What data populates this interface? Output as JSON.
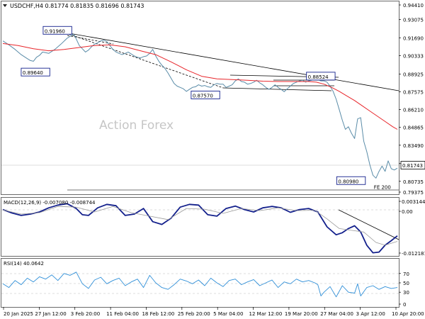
{
  "header": {
    "symbol_line": "USDCHF,H4  0.81774 0.81835 0.81696 0.81743"
  },
  "watermark": "Action Forex",
  "colors": {
    "price": "#5a8ca8",
    "ma": "#e8262b",
    "macd": "#13208c",
    "signal": "#9a9a9a",
    "rsi": "#2f8fd8",
    "trend": "#000000"
  },
  "chart_data": [
    {
      "type": "line",
      "panel": "price",
      "title": "USDCHF,H4",
      "quote": {
        "open": 0.81774,
        "high": 0.81835,
        "low": 0.81696,
        "close": 0.81743
      },
      "ylim": [
        0.7975,
        0.9441
      ],
      "y_ticks": [
        "0.94410",
        "0.93075",
        "0.91690",
        "0.90333",
        "0.88925",
        "0.87575",
        "0.86210",
        "0.84865",
        "0.83490",
        "0.82090",
        "0.80735",
        "0.79375"
      ],
      "current_price_label": "0.81743",
      "x_ticks": [
        "20 Jan 2025",
        "27 Jan 12:00",
        "3 Feb 20:00",
        "11 Feb 04:00",
        "18 Feb 12:00",
        "25 Feb 20:00",
        "5 Mar 04:00",
        "12 Mar 12:00",
        "19 Mar 20:00",
        "27 Mar 04:00",
        "3 Apr 12:00",
        "10 Apr 20:00"
      ],
      "series": [
        {
          "key": "price",
          "x": [
            0,
            4,
            8,
            12,
            16,
            18,
            20,
            22,
            24,
            26,
            30,
            34,
            38,
            42,
            44,
            46,
            47,
            48,
            50,
            52,
            54,
            56,
            58,
            60,
            62,
            64,
            66,
            68,
            70,
            72,
            74,
            76,
            78,
            80,
            82,
            84,
            86,
            88,
            90,
            92,
            94,
            96,
            98,
            100,
            102,
            104,
            106,
            108,
            110,
            112,
            114,
            116,
            118,
            120,
            122,
            124,
            126,
            128,
            130,
            132,
            134,
            136,
            138,
            140,
            142,
            144,
            146,
            148,
            150,
            152,
            154,
            156,
            158,
            160,
            162,
            164,
            166,
            168,
            170,
            172,
            174,
            176,
            178,
            180,
            182,
            184,
            186,
            188,
            190,
            192,
            194,
            196,
            198,
            200,
            202,
            204,
            206,
            208,
            210,
            212,
            214,
            216,
            218,
            220,
            222,
            224,
            226,
            228,
            230,
            232,
            234,
            236,
            238,
            240,
            242,
            244,
            246,
            248,
            250,
            252,
            254,
            256,
            258
          ],
          "y": [
            0.9145,
            0.9115,
            0.908,
            0.904,
            0.901,
            0.8995,
            0.899,
            0.902,
            0.9035,
            0.906,
            0.905,
            0.908,
            0.912,
            0.9165,
            0.918,
            0.9196,
            0.9185,
            0.916,
            0.911,
            0.9085,
            0.906,
            0.9075,
            0.91,
            0.912,
            0.913,
            0.9145,
            0.915,
            0.914,
            0.911,
            0.908,
            0.906,
            0.905,
            0.904,
            0.905,
            0.906,
            0.9045,
            0.903,
            0.902,
            0.9015,
            0.9025,
            0.903,
            0.905,
            0.908,
            0.903,
            0.899,
            0.896,
            0.8935,
            0.89,
            0.886,
            0.882,
            0.88,
            0.879,
            0.878,
            0.876,
            0.8775,
            0.879,
            0.8795,
            0.881,
            0.88,
            0.8805,
            0.8795,
            0.879,
            0.881,
            0.882,
            0.8815,
            0.8815,
            0.879,
            0.88,
            0.881,
            0.884,
            0.8855,
            0.8835,
            0.883,
            0.8815,
            0.882,
            0.883,
            0.8845,
            0.8825,
            0.881,
            0.879,
            0.8775,
            0.879,
            0.881,
            0.879,
            0.8775,
            0.8757,
            0.878,
            0.88,
            0.882,
            0.883,
            0.884,
            0.8845,
            0.883,
            0.884,
            0.8845,
            0.8855,
            0.885,
            0.884,
            0.884,
            0.883,
            0.88,
            0.876,
            0.87,
            0.862,
            0.854,
            0.847,
            0.849,
            0.844,
            0.84,
            0.855,
            0.856,
            0.838,
            0.83,
            0.82,
            0.812,
            0.8098,
            0.815,
            0.819,
            0.815,
            0.823,
            0.817,
            0.816,
            0.8174
          ]
        },
        {
          "key": "ma",
          "x": [
            0,
            10,
            20,
            30,
            40,
            50,
            60,
            70,
            80,
            90,
            100,
            110,
            120,
            130,
            140,
            150,
            160,
            170,
            180,
            190,
            200,
            205,
            210,
            215,
            220,
            225,
            230,
            235,
            240,
            245,
            250,
            255,
            258
          ],
          "y": [
            0.9125,
            0.911,
            0.9085,
            0.907,
            0.908,
            0.9095,
            0.911,
            0.9115,
            0.91,
            0.907,
            0.904,
            0.8985,
            0.8925,
            0.8875,
            0.8855,
            0.885,
            0.8845,
            0.8838,
            0.8835,
            0.8835,
            0.8835,
            0.883,
            0.8815,
            0.879,
            0.876,
            0.8725,
            0.869,
            0.865,
            0.861,
            0.857,
            0.853,
            0.849,
            0.847
          ]
        }
      ],
      "annotations": [
        {
          "text": "0.91960",
          "x": 46,
          "y": 0.9196
        },
        {
          "text": "0.89640",
          "x": 12,
          "y": 0.8964
        },
        {
          "text": "0.87570",
          "x": 140,
          "y": 0.8757
        },
        {
          "text": "0.88524",
          "x": 193,
          "y": 0.8852
        },
        {
          "text": "0.80980",
          "x": 238,
          "y": 0.8098
        },
        {
          "text": "FE 200",
          "x": 258,
          "y": 0.7998
        }
      ]
    },
    {
      "type": "line",
      "panel": "macd",
      "title": "MACD(12,26,9) -0.007080 -0.008744",
      "ylim": [
        -0.0127,
        0.0037
      ],
      "y_ticks": [
        "0.003144",
        "0.00",
        "-0.012181"
      ],
      "series": [
        {
          "key": "macd",
          "x": [
            0,
            6,
            12,
            18,
            24,
            30,
            36,
            42,
            48,
            52,
            56,
            62,
            68,
            74,
            80,
            86,
            92,
            98,
            104,
            110,
            116,
            122,
            128,
            134,
            140,
            146,
            152,
            158,
            164,
            170,
            176,
            182,
            188,
            194,
            200,
            206,
            212,
            218,
            222,
            226,
            230,
            234,
            238,
            242,
            246,
            250,
            254,
            258
          ],
          "y": [
            0.0005,
            -0.0005,
            -0.0012,
            -0.0008,
            -0.0002,
            0.001,
            0.0018,
            0.0022,
            0.0008,
            -0.001,
            -0.0012,
            0.001,
            0.002,
            0.0016,
            -0.0012,
            -0.0008,
            0.0008,
            -0.003,
            -0.0038,
            -0.002,
            0.0012,
            0.002,
            0.0018,
            -0.001,
            -0.0014,
            0.0008,
            0.0015,
            0.0005,
            -0.0002,
            0.001,
            0.0014,
            0.001,
            -0.0003,
            0.0005,
            0.0008,
            -0.0002,
            -0.0045,
            -0.0068,
            -0.0062,
            -0.005,
            -0.0042,
            -0.006,
            -0.0098,
            -0.012,
            -0.0118,
            -0.0098,
            -0.0085,
            -0.0071
          ]
        },
        {
          "key": "signal",
          "x": [
            0,
            12,
            24,
            36,
            48,
            60,
            72,
            84,
            96,
            108,
            120,
            132,
            144,
            156,
            168,
            180,
            192,
            204,
            212,
            220,
            228,
            236,
            244,
            250,
            258
          ],
          "y": [
            0.0004,
            -0.0008,
            -0.0004,
            0.0014,
            0.0012,
            -0.0002,
            0.0014,
            -0.0004,
            -0.0014,
            -0.0024,
            0.0008,
            0.0006,
            -0.0006,
            0.0008,
            0.0002,
            0.001,
            0.0002,
            0.0003,
            -0.0022,
            -0.005,
            -0.0055,
            -0.006,
            -0.009,
            -0.0098,
            -0.0087
          ]
        }
      ]
    },
    {
      "type": "line",
      "panel": "rsi",
      "title": "RSI(14) 40.0642",
      "ylim": [
        0,
        100
      ],
      "y_ticks": [
        "70",
        "50",
        "30",
        "0"
      ],
      "series": [
        {
          "key": "rsi",
          "x": [
            0,
            4,
            8,
            12,
            16,
            20,
            24,
            28,
            32,
            36,
            40,
            44,
            48,
            52,
            56,
            60,
            64,
            68,
            72,
            76,
            80,
            84,
            88,
            92,
            96,
            100,
            104,
            108,
            112,
            116,
            120,
            124,
            128,
            132,
            136,
            140,
            144,
            148,
            152,
            156,
            160,
            164,
            168,
            172,
            176,
            180,
            184,
            188,
            192,
            196,
            200,
            204,
            206,
            208,
            210,
            214,
            218,
            222,
            226,
            230,
            232,
            234,
            238,
            242,
            246,
            250,
            254,
            258
          ],
          "y": [
            48,
            40,
            55,
            46,
            60,
            52,
            63,
            58,
            67,
            55,
            70,
            66,
            73,
            48,
            38,
            56,
            62,
            48,
            55,
            60,
            44,
            52,
            58,
            40,
            66,
            50,
            40,
            36,
            46,
            58,
            54,
            48,
            56,
            44,
            60,
            50,
            42,
            55,
            58,
            46,
            52,
            57,
            44,
            50,
            56,
            40,
            52,
            48,
            58,
            52,
            55,
            50,
            46,
            22,
            30,
            42,
            20,
            44,
            30,
            28,
            48,
            22,
            40,
            44,
            36,
            42,
            38,
            40
          ]
        }
      ]
    }
  ]
}
